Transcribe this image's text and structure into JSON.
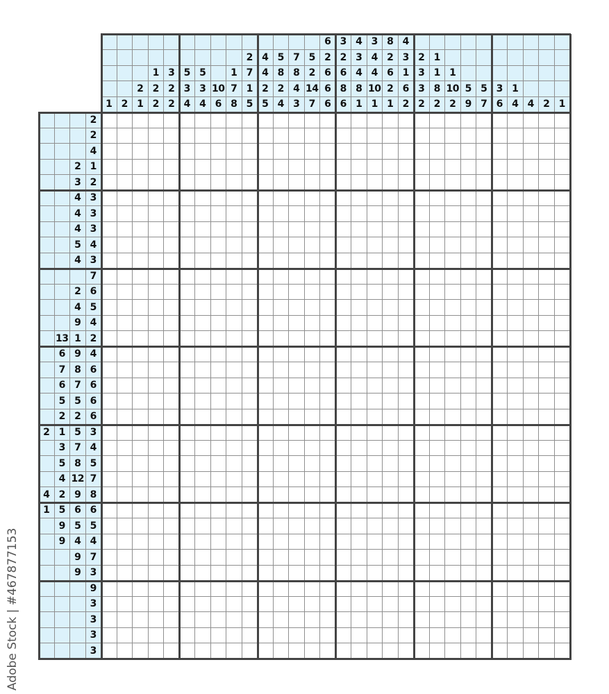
{
  "puzzle": {
    "type": "nonogram",
    "columns": 30,
    "rows": 35,
    "clue_background": "#dcf2fb",
    "grid_line_color": "#8f8f8f",
    "block_line_color": "#444444",
    "column_clues": [
      [
        1
      ],
      [
        2
      ],
      [
        2,
        1
      ],
      [
        1,
        2,
        2
      ],
      [
        3,
        2,
        2
      ],
      [
        5,
        3,
        4
      ],
      [
        5,
        3,
        4
      ],
      [
        10,
        6
      ],
      [
        1,
        7,
        8
      ],
      [
        2,
        7,
        1,
        5
      ],
      [
        4,
        4,
        2,
        5
      ],
      [
        5,
        8,
        2,
        4
      ],
      [
        7,
        8,
        4,
        3
      ],
      [
        5,
        2,
        14,
        7
      ],
      [
        6,
        2,
        6,
        6,
        6
      ],
      [
        3,
        2,
        6,
        8,
        6
      ],
      [
        4,
        3,
        4,
        8,
        1
      ],
      [
        3,
        4,
        4,
        10,
        1
      ],
      [
        8,
        2,
        6,
        2,
        1
      ],
      [
        4,
        3,
        1,
        6,
        2
      ],
      [
        2,
        3,
        3,
        2
      ],
      [
        1,
        1,
        8,
        2
      ],
      [
        1,
        10,
        2
      ],
      [
        5,
        9
      ],
      [
        5,
        7
      ],
      [
        3,
        6
      ],
      [
        1,
        4
      ],
      [
        4
      ],
      [
        2
      ],
      [
        1
      ]
    ],
    "row_clues": [
      [
        2
      ],
      [
        2
      ],
      [
        4
      ],
      [
        2,
        1
      ],
      [
        3,
        2
      ],
      [
        4,
        3
      ],
      [
        4,
        3
      ],
      [
        4,
        3
      ],
      [
        5,
        4
      ],
      [
        4,
        3
      ],
      [
        7
      ],
      [
        2,
        6
      ],
      [
        4,
        5
      ],
      [
        9,
        4
      ],
      [
        13,
        1,
        2
      ],
      [
        6,
        9,
        4
      ],
      [
        7,
        8,
        6
      ],
      [
        6,
        7,
        6
      ],
      [
        5,
        5,
        6
      ],
      [
        2,
        2,
        6
      ],
      [
        2,
        1,
        5,
        3
      ],
      [
        3,
        7,
        4
      ],
      [
        5,
        8,
        5
      ],
      [
        4,
        12,
        7
      ],
      [
        4,
        2,
        9,
        8
      ],
      [
        1,
        5,
        6,
        6
      ],
      [
        9,
        5,
        5
      ],
      [
        9,
        4,
        4
      ],
      [
        9,
        7
      ],
      [
        9,
        3
      ],
      [
        9
      ],
      [
        3
      ],
      [
        3
      ],
      [
        3
      ],
      [
        3
      ]
    ]
  },
  "watermark": "Adobe Stock | #467877153"
}
